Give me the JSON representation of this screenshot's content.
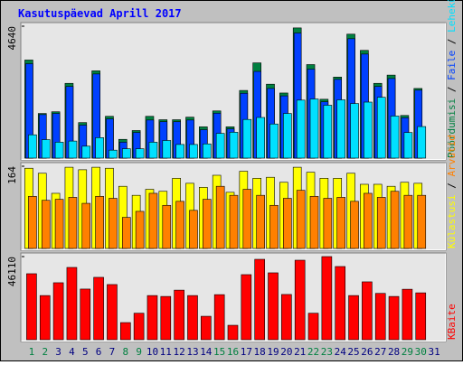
{
  "title": "Kasutuspäevad Aprill 2017",
  "chart_data": [
    {
      "type": "bar",
      "ylim": [
        0,
        4640
      ],
      "yticks": [
        4640
      ],
      "series": [
        {
          "name": "Pöördumisi",
          "color": "#008040",
          "values": [
            3450,
            1570,
            1630,
            2630,
            1250,
            3070,
            1470,
            660,
            970,
            1470,
            1350,
            1350,
            1440,
            1100,
            1660,
            1100,
            2380,
            3350,
            2600,
            2290,
            4580,
            3290,
            2070,
            2850,
            4360,
            3790,
            2630,
            2920,
            1500,
            2450,
            0
          ]
        },
        {
          "name": "Faile",
          "color": "#0040ff",
          "values": [
            3320,
            1530,
            1570,
            2520,
            1160,
            2960,
            1380,
            560,
            900,
            1340,
            1280,
            1280,
            1340,
            1000,
            1580,
            1030,
            2280,
            3050,
            2450,
            2190,
            4400,
            3130,
            1980,
            2770,
            4200,
            3660,
            2520,
            2800,
            1420,
            2390,
            0
          ]
        },
        {
          "name": "Lehekülgi",
          "color": "#00e0ff",
          "values": [
            820,
            650,
            560,
            600,
            420,
            720,
            280,
            330,
            330,
            560,
            620,
            480,
            480,
            500,
            870,
            910,
            1360,
            1430,
            1200,
            1570,
            2040,
            2080,
            1860,
            2050,
            1920,
            1970,
            2140,
            1480,
            900,
            1110,
            0
          ]
        }
      ]
    },
    {
      "type": "bar",
      "ylim": [
        0,
        164
      ],
      "yticks": [
        164
      ],
      "series": [
        {
          "name": "Külastusi",
          "color": "#ffff00",
          "values": [
            160,
            150,
            110,
            162,
            157,
            162,
            160,
            124,
            106,
            118,
            114,
            140,
            130,
            122,
            146,
            112,
            154,
            140,
            142,
            132,
            162,
            152,
            140,
            140,
            150,
            128,
            128,
            124,
            132,
            130,
            0
          ]
        },
        {
          "name": "Arvutid",
          "color": "#ff8000",
          "values": [
            104,
            96,
            98,
            102,
            90,
            104,
            100,
            62,
            74,
            110,
            86,
            94,
            76,
            98,
            124,
            106,
            118,
            106,
            86,
            100,
            116,
            104,
            100,
            102,
            94,
            110,
            102,
            114,
            106,
            106,
            0
          ]
        }
      ]
    },
    {
      "type": "bar",
      "ylim": [
        0,
        46110
      ],
      "yticks": [
        46110
      ],
      "categories": [
        "1",
        "2",
        "3",
        "4",
        "5",
        "6",
        "7",
        "8",
        "9",
        "10",
        "11",
        "12",
        "13",
        "14",
        "15",
        "16",
        "17",
        "18",
        "19",
        "20",
        "21",
        "22",
        "23",
        "24",
        "25",
        "26",
        "27",
        "28",
        "29",
        "30",
        "31"
      ],
      "label_colors": [
        "#008040",
        "#008040",
        "#000080",
        "#000080",
        "#000080",
        "#000080",
        "#000080",
        "#008040",
        "#008040",
        "#000080",
        "#000080",
        "#000080",
        "#000080",
        "#000080",
        "#008040",
        "#008040",
        "#000080",
        "#000080",
        "#000080",
        "#000080",
        "#000080",
        "#008040",
        "#008040",
        "#000080",
        "#000080",
        "#000080",
        "#000080",
        "#000080",
        "#008040",
        "#008040",
        "#000080"
      ],
      "series": [
        {
          "name": "KBaite",
          "color": "#ff0000",
          "values": [
            36600,
            24500,
            31600,
            40100,
            28100,
            34600,
            30600,
            9500,
            14700,
            24500,
            24000,
            27500,
            24500,
            13000,
            25000,
            8000,
            36100,
            44600,
            37100,
            25100,
            44100,
            14700,
            46110,
            40600,
            24500,
            32100,
            25700,
            24000,
            28000,
            26000,
            0
          ]
        }
      ]
    }
  ]
}
